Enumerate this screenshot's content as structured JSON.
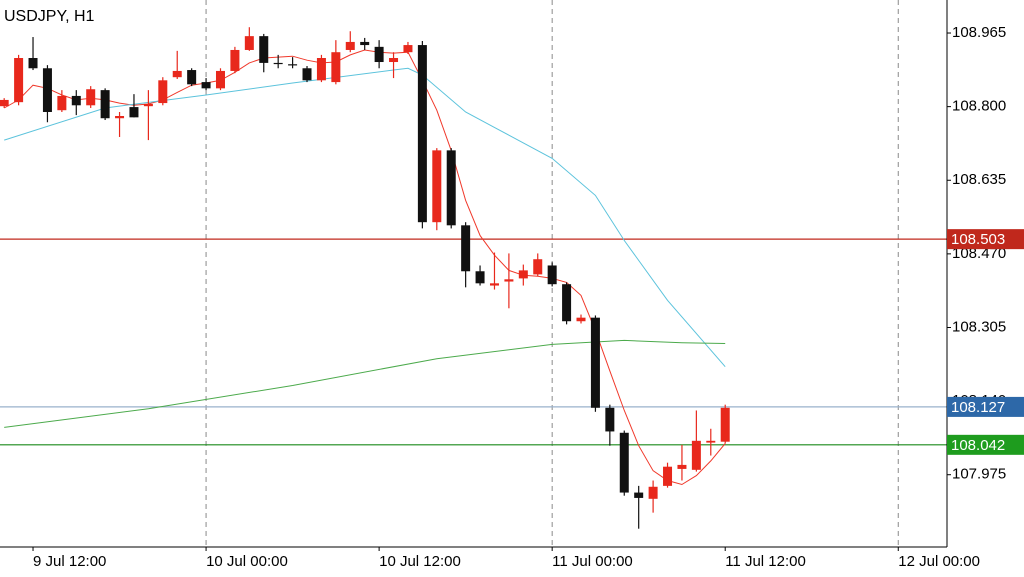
{
  "chart_data": {
    "type": "candlestick",
    "title": "USDJPY, H1",
    "xlim": [
      -0.29,
      65.38
    ],
    "xticks": [
      {
        "value": 2,
        "label": "9 Jul 12:00"
      },
      {
        "value": 14,
        "label": "10 Jul 00:00"
      },
      {
        "value": 26,
        "label": "10 Jul 12:00"
      },
      {
        "value": 38,
        "label": "11 Jul 00:00"
      },
      {
        "value": 50,
        "label": "11 Jul 12:00"
      },
      {
        "value": 62,
        "label": "12 Jul 00:00"
      }
    ],
    "separators": [
      14,
      38,
      62
    ],
    "ylim": [
      107.813,
      109.039
    ],
    "yticks": [
      108.965,
      {
        "value": 108.8,
        "label": "108.800"
      },
      108.635,
      {
        "value": 108.47,
        "label": "108.470"
      },
      108.305,
      {
        "value": 108.14,
        "label": "108.140"
      },
      107.975
    ],
    "up_color": "#e8281c",
    "down_color": "#111111",
    "candles": {
      "open": [
        108.801,
        108.81,
        108.909,
        108.886,
        108.792,
        108.824,
        108.803,
        108.837,
        108.774,
        108.799,
        108.801,
        108.808,
        108.866,
        108.882,
        108.855,
        108.841,
        108.88,
        108.927,
        108.958,
        108.898,
        108.895,
        108.886,
        108.859,
        108.855,
        108.927,
        108.945,
        108.934,
        108.9,
        108.922,
        108.938,
        108.541,
        108.702,
        108.534,
        108.431,
        108.399,
        108.408,
        108.415,
        108.424,
        108.444,
        108.402,
        108.319,
        108.327,
        108.125,
        108.069,
        107.935,
        107.921,
        107.95,
        107.988,
        107.986,
        108.047,
        108.049
      ],
      "high": [
        108.819,
        108.916,
        108.956,
        108.893,
        108.837,
        108.837,
        108.846,
        108.841,
        108.788,
        108.828,
        108.837,
        108.866,
        108.925,
        108.886,
        108.864,
        108.886,
        108.934,
        108.978,
        108.963,
        108.916,
        108.911,
        108.891,
        108.916,
        108.949,
        108.969,
        108.954,
        108.949,
        108.922,
        108.945,
        108.947,
        108.707,
        108.707,
        108.541,
        108.444,
        108.473,
        108.471,
        108.446,
        108.471,
        108.451,
        108.406,
        108.334,
        108.332,
        108.132,
        108.074,
        107.95,
        107.962,
        108.002,
        108.042,
        108.119,
        108.078,
        108.132
      ],
      "low": [
        108.797,
        108.803,
        108.882,
        108.765,
        108.788,
        108.781,
        108.797,
        108.77,
        108.732,
        108.776,
        108.725,
        108.803,
        108.862,
        108.846,
        108.837,
        108.837,
        108.875,
        108.925,
        108.877,
        108.886,
        108.886,
        108.855,
        108.855,
        108.85,
        108.922,
        108.927,
        108.886,
        108.864,
        108.918,
        108.527,
        108.523,
        108.527,
        108.395,
        108.399,
        108.39,
        108.348,
        108.399,
        108.42,
        108.397,
        108.312,
        108.314,
        108.116,
        108.04,
        107.928,
        107.854,
        107.89,
        107.946,
        107.962,
        107.982,
        108.018,
        108.045
      ],
      "close": [
        108.815,
        108.909,
        108.886,
        108.788,
        108.824,
        108.803,
        108.839,
        108.774,
        108.779,
        108.776,
        108.806,
        108.859,
        108.88,
        108.85,
        108.841,
        108.88,
        108.927,
        108.958,
        108.898,
        108.896,
        108.893,
        108.859,
        108.909,
        108.922,
        108.945,
        108.938,
        108.9,
        108.909,
        108.938,
        108.541,
        108.702,
        108.534,
        108.431,
        108.404,
        108.404,
        108.413,
        108.433,
        108.458,
        108.402,
        108.319,
        108.327,
        108.125,
        108.072,
        107.935,
        107.923,
        107.948,
        107.993,
        107.997,
        108.051,
        108.051,
        108.125
      ]
    },
    "moving_averages": [
      {
        "color": "#f0392b",
        "values": [
          108.797,
          108.815,
          108.848,
          108.841,
          108.826,
          108.815,
          108.819,
          108.815,
          108.808,
          108.803,
          108.806,
          108.815,
          108.832,
          108.848,
          108.853,
          108.859,
          108.877,
          108.898,
          108.909,
          108.911,
          108.913,
          108.904,
          108.898,
          108.9,
          108.916,
          108.927,
          108.922,
          108.92,
          108.922,
          108.859,
          108.792,
          108.702,
          108.59,
          108.511,
          108.467,
          108.433,
          108.422,
          108.42,
          108.415,
          108.406,
          108.377,
          108.298,
          108.208,
          108.119,
          108.04,
          107.984,
          107.962,
          107.953,
          107.973,
          108.006,
          108.045
        ]
      },
      {
        "color": "#5cc3dc",
        "x": [
          0,
          7,
          14,
          20,
          27,
          28,
          29,
          32,
          35,
          38,
          41,
          43,
          46,
          50
        ],
        "values": [
          108.725,
          108.797,
          108.826,
          108.853,
          108.882,
          108.886,
          108.871,
          108.788,
          108.736,
          108.684,
          108.601,
          108.5,
          108.366,
          108.217
        ]
      },
      {
        "color": "#4caa4c",
        "x": [
          0,
          10,
          20,
          30,
          38,
          43,
          47,
          50
        ],
        "values": [
          108.081,
          108.123,
          108.175,
          108.235,
          108.267,
          108.276,
          108.271,
          108.269
        ]
      }
    ],
    "levels": [
      {
        "value": 108.503,
        "color": "#c0281c",
        "label_color": "#c0281c"
      },
      {
        "value": 108.127,
        "color": "#9ab2cc",
        "label_color": "#2d68a8"
      },
      {
        "value": 108.042,
        "color": "#1a8a1a",
        "label_color": "#1e9c1e"
      }
    ]
  }
}
